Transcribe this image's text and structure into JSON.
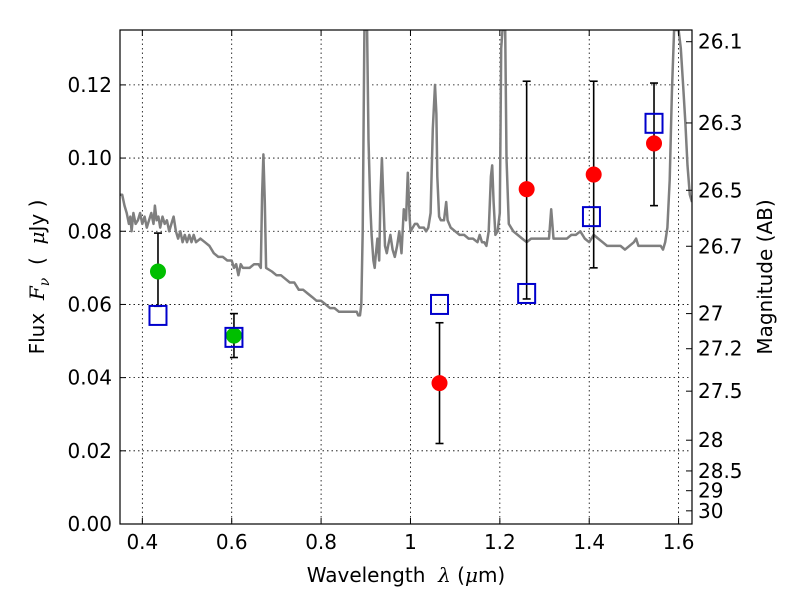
{
  "chart_data": {
    "type": "scatter",
    "xlabel": "Wavelength  λ (μm)",
    "ylabel": "Flux  F_ν  ( μJy )",
    "y2label": "Magnitude (AB)",
    "xlim": [
      0.35,
      1.63
    ],
    "ylim": [
      0.0,
      0.135
    ],
    "grid": true,
    "grid_style": "dotted",
    "x_ticks": [
      0.4,
      0.6,
      0.8,
      1.0,
      1.2,
      1.4,
      1.6
    ],
    "x_tick_labels": [
      "0.4",
      "0.6",
      "0.8",
      "1",
      "1.2",
      "1.4",
      "1.6"
    ],
    "y_ticks": [
      0.0,
      0.02,
      0.04,
      0.06,
      0.08,
      0.1,
      0.12
    ],
    "y_tick_labels": [
      "0.00",
      "0.02",
      "0.04",
      "0.06",
      "0.08",
      "0.10",
      "0.12"
    ],
    "magnitude_ticks": [
      {
        "label": "26.1",
        "flux": 0.1318
      },
      {
        "label": "26.3",
        "flux": 0.1096
      },
      {
        "label": "26.5",
        "flux": 0.0912
      },
      {
        "label": "26.7",
        "flux": 0.0759
      },
      {
        "label": "27",
        "flux": 0.0575
      },
      {
        "label": "27.2",
        "flux": 0.0479
      },
      {
        "label": "27.5",
        "flux": 0.0363
      },
      {
        "label": "28",
        "flux": 0.0229
      },
      {
        "label": "28.5",
        "flux": 0.0145
      },
      {
        "label": "29",
        "flux": 0.0091
      },
      {
        "label": "30",
        "flux": 0.0036
      }
    ],
    "colors": {
      "model": "#7f7f7f",
      "green_points": "#00bf00",
      "red_points": "#ff0000",
      "squares": "#0000cc",
      "errorbars": "#000000",
      "grid": "#000000"
    },
    "series": [
      {
        "marker": "circle",
        "color": "#00bf00",
        "points": [
          {
            "x": 0.435,
            "y": 0.069,
            "yerr_low": 0.0595,
            "yerr_high": 0.0795
          },
          {
            "x": 0.605,
            "y": 0.0515,
            "yerr_low": 0.0455,
            "yerr_high": 0.0575
          }
        ]
      },
      {
        "marker": "circle",
        "color": "#ff0000",
        "points": [
          {
            "x": 1.065,
            "y": 0.0385,
            "yerr_low": 0.022,
            "yerr_high": 0.055
          },
          {
            "x": 1.26,
            "y": 0.0915,
            "yerr_low": 0.0615,
            "yerr_high": 0.121
          },
          {
            "x": 1.41,
            "y": 0.0955,
            "yerr_low": 0.07,
            "yerr_high": 0.121
          },
          {
            "x": 1.545,
            "y": 0.104,
            "yerr_low": 0.087,
            "yerr_high": 0.1205
          }
        ]
      },
      {
        "marker": "square-open",
        "color": "#0000cc",
        "points": [
          {
            "x": 0.435,
            "y": 0.057
          },
          {
            "x": 0.605,
            "y": 0.051
          },
          {
            "x": 1.065,
            "y": 0.06
          },
          {
            "x": 1.26,
            "y": 0.063
          },
          {
            "x": 1.405,
            "y": 0.084
          },
          {
            "x": 1.545,
            "y": 0.1095
          }
        ]
      },
      {
        "marker": "line",
        "color": "#7f7f7f",
        "points": [
          [
            0.35,
            0.09
          ],
          [
            0.355,
            0.09
          ],
          [
            0.36,
            0.087
          ],
          [
            0.365,
            0.085
          ],
          [
            0.37,
            0.082
          ],
          [
            0.373,
            0.084
          ],
          [
            0.376,
            0.08
          ],
          [
            0.38,
            0.085
          ],
          [
            0.385,
            0.082
          ],
          [
            0.39,
            0.083
          ],
          [
            0.395,
            0.085
          ],
          [
            0.4,
            0.082
          ],
          [
            0.405,
            0.084
          ],
          [
            0.41,
            0.081
          ],
          [
            0.415,
            0.083
          ],
          [
            0.42,
            0.085
          ],
          [
            0.425,
            0.082
          ],
          [
            0.428,
            0.087
          ],
          [
            0.432,
            0.083
          ],
          [
            0.436,
            0.084
          ],
          [
            0.44,
            0.081
          ],
          [
            0.445,
            0.084
          ],
          [
            0.45,
            0.082
          ],
          [
            0.455,
            0.083
          ],
          [
            0.46,
            0.08
          ],
          [
            0.465,
            0.082
          ],
          [
            0.47,
            0.084
          ],
          [
            0.475,
            0.08
          ],
          [
            0.48,
            0.078
          ],
          [
            0.485,
            0.08
          ],
          [
            0.49,
            0.077
          ],
          [
            0.495,
            0.079
          ],
          [
            0.5,
            0.077
          ],
          [
            0.505,
            0.079
          ],
          [
            0.51,
            0.077
          ],
          [
            0.515,
            0.079
          ],
          [
            0.52,
            0.077
          ],
          [
            0.53,
            0.078
          ],
          [
            0.54,
            0.077
          ],
          [
            0.55,
            0.076
          ],
          [
            0.56,
            0.074
          ],
          [
            0.57,
            0.073
          ],
          [
            0.58,
            0.073
          ],
          [
            0.59,
            0.072
          ],
          [
            0.6,
            0.072
          ],
          [
            0.605,
            0.07
          ],
          [
            0.61,
            0.071
          ],
          [
            0.615,
            0.068
          ],
          [
            0.62,
            0.071
          ],
          [
            0.625,
            0.07
          ],
          [
            0.63,
            0.07
          ],
          [
            0.64,
            0.07
          ],
          [
            0.65,
            0.071
          ],
          [
            0.66,
            0.071
          ],
          [
            0.665,
            0.07
          ],
          [
            0.668,
            0.09
          ],
          [
            0.671,
            0.101
          ],
          [
            0.674,
            0.088
          ],
          [
            0.677,
            0.07
          ],
          [
            0.69,
            0.069
          ],
          [
            0.7,
            0.068
          ],
          [
            0.71,
            0.068
          ],
          [
            0.72,
            0.067
          ],
          [
            0.73,
            0.066
          ],
          [
            0.74,
            0.066
          ],
          [
            0.75,
            0.064
          ],
          [
            0.76,
            0.064
          ],
          [
            0.77,
            0.063
          ],
          [
            0.78,
            0.062
          ],
          [
            0.79,
            0.061
          ],
          [
            0.8,
            0.061
          ],
          [
            0.81,
            0.06
          ],
          [
            0.82,
            0.059
          ],
          [
            0.83,
            0.059
          ],
          [
            0.84,
            0.058
          ],
          [
            0.85,
            0.058
          ],
          [
            0.86,
            0.058
          ],
          [
            0.87,
            0.058
          ],
          [
            0.88,
            0.058
          ],
          [
            0.883,
            0.057
          ],
          [
            0.887,
            0.057
          ],
          [
            0.89,
            0.06
          ],
          [
            0.893,
            0.08
          ],
          [
            0.897,
            0.135
          ],
          [
            0.903,
            0.135
          ],
          [
            0.906,
            0.105
          ],
          [
            0.91,
            0.087
          ],
          [
            0.913,
            0.079
          ],
          [
            0.917,
            0.072
          ],
          [
            0.92,
            0.07
          ],
          [
            0.922,
            0.073
          ],
          [
            0.926,
            0.078
          ],
          [
            0.93,
            0.072
          ],
          [
            0.933,
            0.09
          ],
          [
            0.936,
            0.1
          ],
          [
            0.939,
            0.09
          ],
          [
            0.943,
            0.076
          ],
          [
            0.947,
            0.074
          ],
          [
            0.95,
            0.076
          ],
          [
            0.955,
            0.079
          ],
          [
            0.96,
            0.075
          ],
          [
            0.965,
            0.073
          ],
          [
            0.97,
            0.076
          ],
          [
            0.975,
            0.08
          ],
          [
            0.98,
            0.074
          ],
          [
            0.985,
            0.086
          ],
          [
            0.99,
            0.083
          ],
          [
            0.994,
            0.096
          ],
          [
            0.998,
            0.084
          ],
          [
            1.0,
            0.08
          ],
          [
            1.005,
            0.081
          ],
          [
            1.01,
            0.082
          ],
          [
            1.015,
            0.082
          ],
          [
            1.02,
            0.081
          ],
          [
            1.025,
            0.081
          ],
          [
            1.03,
            0.081
          ],
          [
            1.035,
            0.08
          ],
          [
            1.04,
            0.081
          ],
          [
            1.045,
            0.085
          ],
          [
            1.05,
            0.108
          ],
          [
            1.055,
            0.12
          ],
          [
            1.058,
            0.112
          ],
          [
            1.06,
            0.095
          ],
          [
            1.064,
            0.084
          ],
          [
            1.068,
            0.083
          ],
          [
            1.075,
            0.083
          ],
          [
            1.08,
            0.088
          ],
          [
            1.083,
            0.083
          ],
          [
            1.09,
            0.081
          ],
          [
            1.1,
            0.08
          ],
          [
            1.11,
            0.079
          ],
          [
            1.12,
            0.079
          ],
          [
            1.13,
            0.078
          ],
          [
            1.14,
            0.078
          ],
          [
            1.15,
            0.077
          ],
          [
            1.155,
            0.079
          ],
          [
            1.16,
            0.077
          ],
          [
            1.165,
            0.077
          ],
          [
            1.17,
            0.076
          ],
          [
            1.175,
            0.08
          ],
          [
            1.18,
            0.095
          ],
          [
            1.183,
            0.098
          ],
          [
            1.186,
            0.088
          ],
          [
            1.19,
            0.079
          ],
          [
            1.195,
            0.08
          ],
          [
            1.2,
            0.085
          ],
          [
            1.203,
            0.13
          ],
          [
            1.206,
            0.135
          ],
          [
            1.212,
            0.135
          ],
          [
            1.215,
            0.1
          ],
          [
            1.22,
            0.082
          ],
          [
            1.23,
            0.08
          ],
          [
            1.24,
            0.079
          ],
          [
            1.25,
            0.078
          ],
          [
            1.26,
            0.077
          ],
          [
            1.27,
            0.078
          ],
          [
            1.28,
            0.078
          ],
          [
            1.29,
            0.078
          ],
          [
            1.3,
            0.078
          ],
          [
            1.31,
            0.078
          ],
          [
            1.315,
            0.086
          ],
          [
            1.32,
            0.078
          ],
          [
            1.33,
            0.078
          ],
          [
            1.34,
            0.078
          ],
          [
            1.35,
            0.078
          ],
          [
            1.36,
            0.079
          ],
          [
            1.37,
            0.079
          ],
          [
            1.38,
            0.08
          ],
          [
            1.39,
            0.078
          ],
          [
            1.4,
            0.077
          ],
          [
            1.41,
            0.079
          ],
          [
            1.42,
            0.078
          ],
          [
            1.43,
            0.077
          ],
          [
            1.44,
            0.076
          ],
          [
            1.45,
            0.076
          ],
          [
            1.46,
            0.076
          ],
          [
            1.47,
            0.076
          ],
          [
            1.48,
            0.075
          ],
          [
            1.49,
            0.076
          ],
          [
            1.5,
            0.077
          ],
          [
            1.505,
            0.078
          ],
          [
            1.51,
            0.076
          ],
          [
            1.52,
            0.076
          ],
          [
            1.53,
            0.076
          ],
          [
            1.54,
            0.076
          ],
          [
            1.55,
            0.076
          ],
          [
            1.56,
            0.076
          ],
          [
            1.565,
            0.075
          ],
          [
            1.57,
            0.077
          ],
          [
            1.575,
            0.081
          ],
          [
            1.58,
            0.094
          ],
          [
            1.585,
            0.118
          ],
          [
            1.59,
            0.135
          ],
          [
            1.595,
            0.135
          ],
          [
            1.6,
            0.135
          ],
          [
            1.605,
            0.13
          ],
          [
            1.61,
            0.12
          ],
          [
            1.615,
            0.11
          ],
          [
            1.62,
            0.098
          ],
          [
            1.625,
            0.09
          ],
          [
            1.63,
            0.088
          ]
        ]
      }
    ]
  }
}
